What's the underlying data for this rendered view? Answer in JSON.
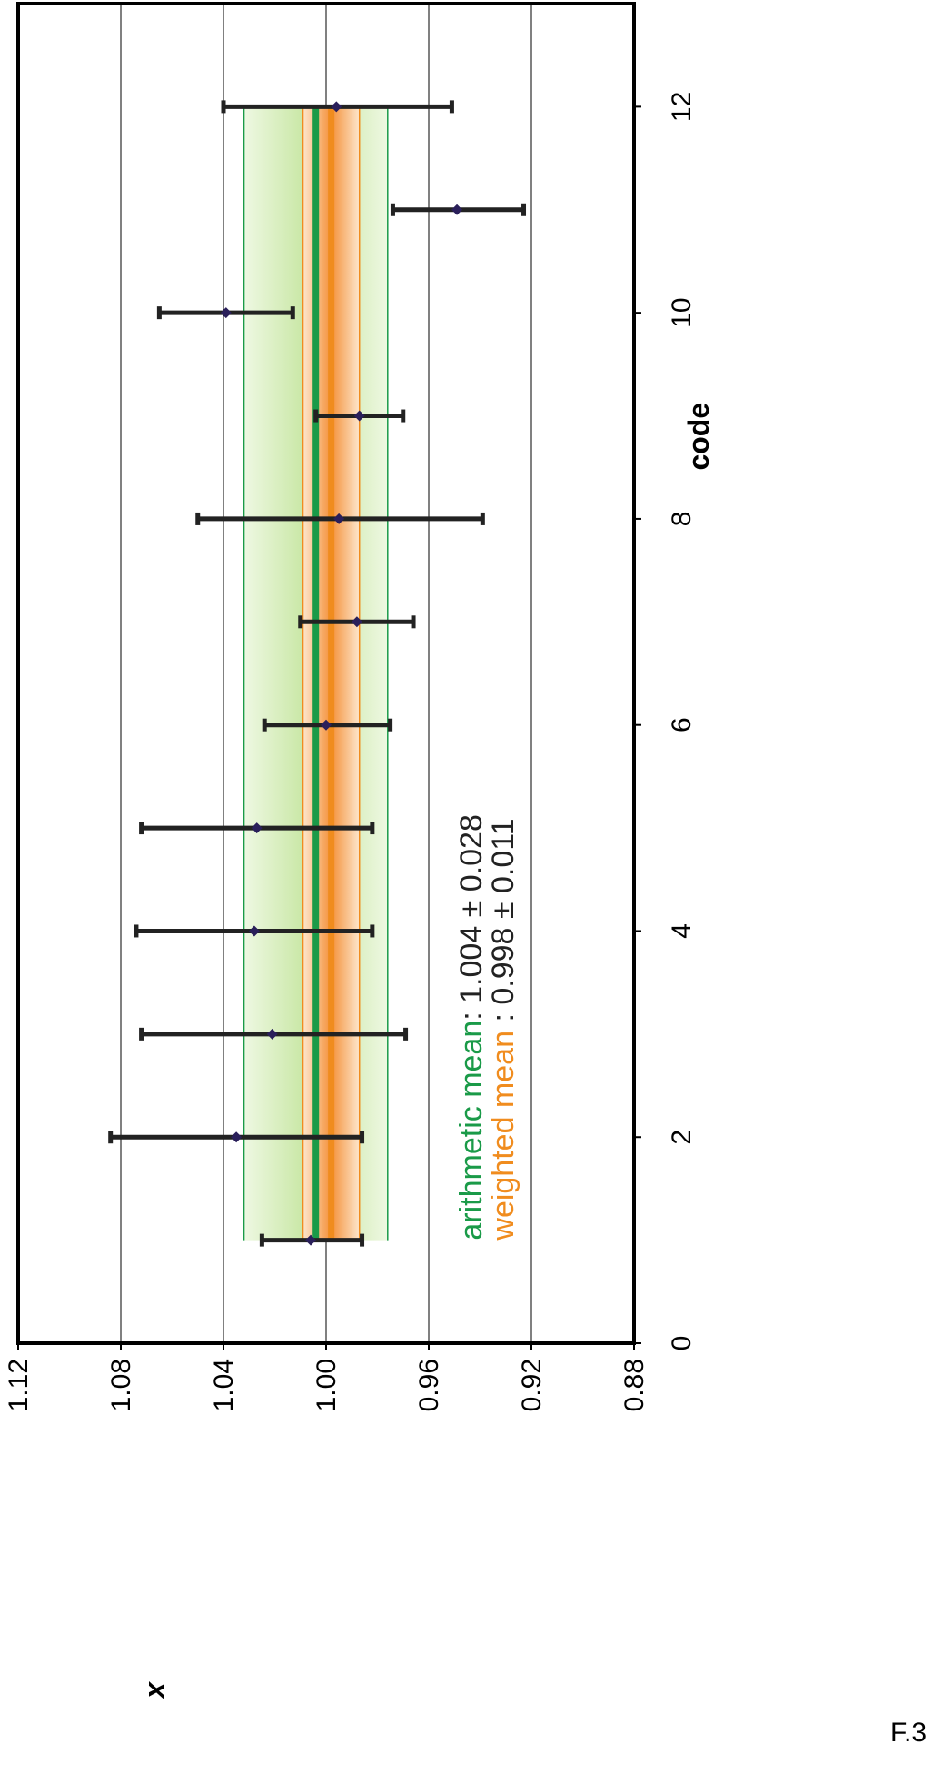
{
  "chart_data": {
    "type": "scatter",
    "xlabel": "code",
    "ylabel": "x",
    "xlim": [
      0,
      13
    ],
    "ylim": [
      0.88,
      1.12
    ],
    "x_ticks": [
      0,
      2,
      4,
      6,
      8,
      10,
      12
    ],
    "y_ticks": [
      0.88,
      0.92,
      0.96,
      1.0,
      1.04,
      1.08,
      1.12
    ],
    "y_tick_labels": [
      "0.88",
      "0.92",
      "0.96",
      "1.00",
      "1.04",
      "1.08",
      "1.12"
    ],
    "grid": true,
    "points": [
      {
        "x": 1,
        "y": 1.006,
        "err_low": 0.986,
        "err_high": 1.025
      },
      {
        "x": 2,
        "y": 1.035,
        "err_low": 0.986,
        "err_high": 1.084
      },
      {
        "x": 3,
        "y": 1.021,
        "err_low": 0.969,
        "err_high": 1.072
      },
      {
        "x": 4,
        "y": 1.028,
        "err_low": 0.982,
        "err_high": 1.074
      },
      {
        "x": 5,
        "y": 1.027,
        "err_low": 0.982,
        "err_high": 1.072
      },
      {
        "x": 6,
        "y": 1.0,
        "err_low": 0.975,
        "err_high": 1.024
      },
      {
        "x": 7,
        "y": 0.988,
        "err_low": 0.966,
        "err_high": 1.01
      },
      {
        "x": 8,
        "y": 0.995,
        "err_low": 0.939,
        "err_high": 1.05
      },
      {
        "x": 9,
        "y": 0.987,
        "err_low": 0.97,
        "err_high": 1.004
      },
      {
        "x": 10,
        "y": 1.039,
        "err_low": 1.013,
        "err_high": 1.065
      },
      {
        "x": 11,
        "y": 0.949,
        "err_low": 0.923,
        "err_high": 0.974
      },
      {
        "x": 12,
        "y": 0.996,
        "err_low": 0.951,
        "err_high": 1.04
      }
    ],
    "bands": {
      "arithmetic": {
        "mean": 1.004,
        "sd": 0.028,
        "x_range": [
          1,
          12
        ],
        "color": "#1a9a48"
      },
      "weighted": {
        "mean": 0.998,
        "sd": 0.011,
        "x_range": [
          1,
          12
        ],
        "color": "#f08c1e"
      }
    },
    "legend": {
      "arithmetic_label": "arithmetic mean",
      "arithmetic_value": ": 1.004 ± 0.028",
      "weighted_label": "weighted mean",
      "weighted_value": " :  0.998 ± 0.011"
    },
    "colors": {
      "points": "#2a1f5a",
      "error_bars": "#222222",
      "grid": "#000000",
      "green_light": "#eef8e2",
      "green_dark": "#c2e49a",
      "orange_light": "#fde6cc",
      "orange_dark": "#f4913a"
    }
  },
  "figure_label": "F.3"
}
